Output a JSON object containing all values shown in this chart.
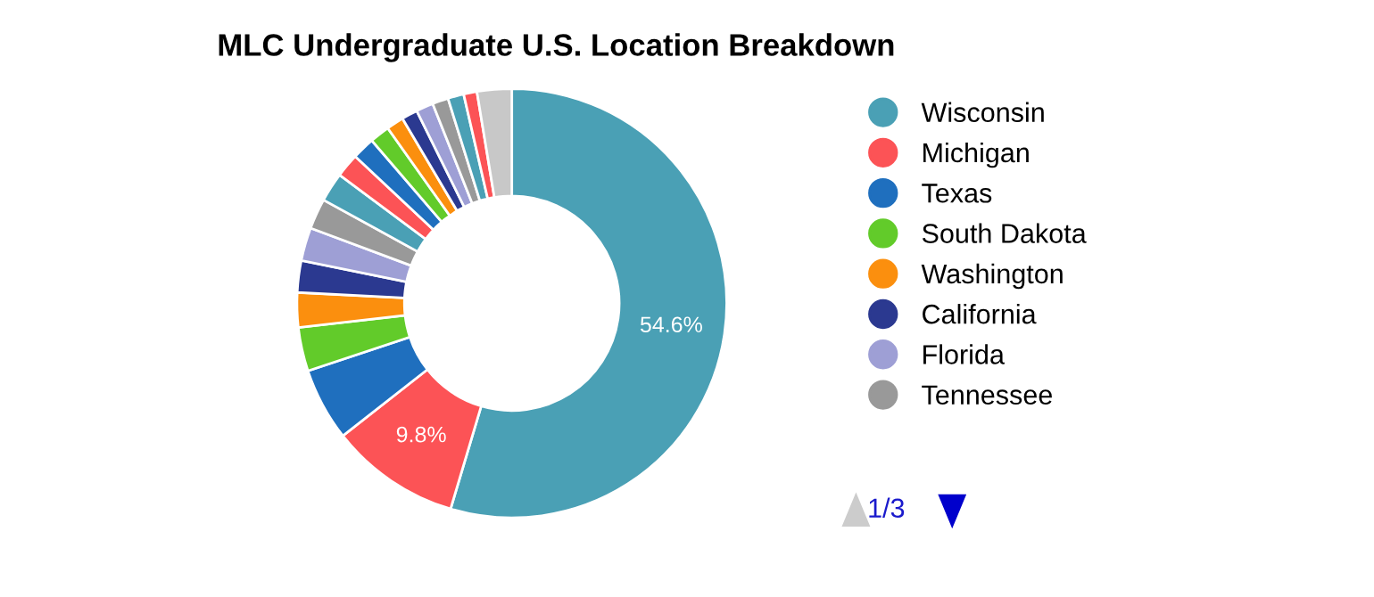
{
  "chart_data": {
    "type": "donut",
    "title": "MLC Undergraduate U.S. Location Breakdown",
    "categories": [
      "Wisconsin",
      "Michigan",
      "Texas",
      "South Dakota",
      "Washington",
      "California",
      "Florida",
      "Tennessee",
      null,
      null,
      null,
      null,
      null,
      null,
      null,
      null,
      null,
      null,
      null
    ],
    "values": [
      54.6,
      9.8,
      5.5,
      3.3,
      2.6,
      2.4,
      2.5,
      2.3,
      2.2,
      1.8,
      1.7,
      1.5,
      1.3,
      1.2,
      1.3,
      1.2,
      1.2,
      1.0,
      2.6
    ],
    "value_labels": [
      "54.6%",
      "9.8%",
      null,
      null,
      null,
      null,
      null,
      null,
      null,
      null,
      null,
      null,
      null,
      null,
      null,
      null,
      null,
      null,
      null
    ],
    "colors": [
      "#4aa0b5",
      "#fc5356",
      "#1f6fbe",
      "#62cb2a",
      "#fb8f0e",
      "#2b3990",
      "#9e9fd5",
      "#999999",
      "#4aa0b5",
      "#fc5356",
      "#1f6fbe",
      "#62cb2a",
      "#fb8f0e",
      "#2b3990",
      "#9e9fd5",
      "#999999",
      "#4aa0b5",
      "#fc5356",
      "#c8c8c8"
    ],
    "legend": "right",
    "annotations": [
      "1/3"
    ]
  }
}
